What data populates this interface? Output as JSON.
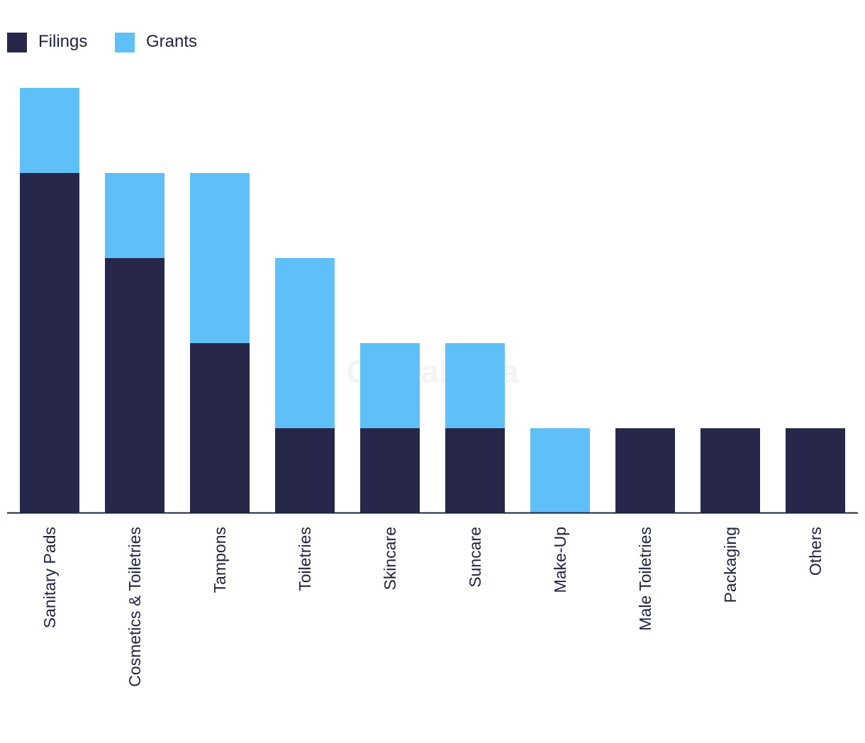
{
  "chart_data": {
    "type": "bar",
    "stacked": true,
    "categories": [
      "Sanitary Pads",
      "Cosmetics & Toiletries",
      "Tampons",
      "Toiletries",
      "Skincare",
      "Suncare",
      "Make-Up",
      "Male Toiletries",
      "Packaging",
      "Others"
    ],
    "series": [
      {
        "name": "Filings",
        "color": "#26274b",
        "values": [
          4,
          3,
          2,
          1,
          1,
          1,
          0,
          1,
          1,
          1
        ]
      },
      {
        "name": "Grants",
        "color": "#5fc0f8",
        "values": [
          1,
          1,
          2,
          2,
          1,
          1,
          1,
          0,
          0,
          0
        ]
      }
    ],
    "ylim": [
      0,
      5
    ],
    "legend": "top-left",
    "grid": false
  },
  "watermark": "GlobalData"
}
